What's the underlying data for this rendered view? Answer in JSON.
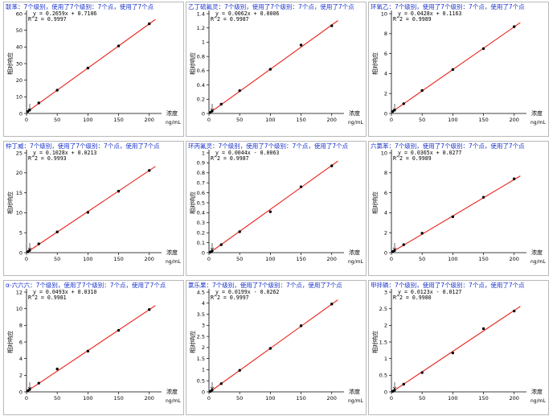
{
  "colors": {
    "line": "#e8231b",
    "point": "#000000",
    "axis": "#000000",
    "title": "#1a33cc"
  },
  "chart_data": [
    {
      "type": "scatter",
      "title": "联苯：7个级别，使用了7个级别：7个点，使用了7个点",
      "equation": "y = 0.2659x + 0.7106",
      "r2": "R^2 = 0.9997",
      "xlabel": "浓度",
      "xunit": "ng/mL",
      "ylabel": "相对响应",
      "xlim": [
        0,
        220
      ],
      "ylim": [
        0,
        60
      ],
      "xticks": [
        0,
        50,
        100,
        150,
        200
      ],
      "yticks": [
        0,
        10,
        20,
        30,
        40,
        50,
        60
      ],
      "x": [
        2,
        5,
        20,
        50,
        100,
        150,
        200
      ],
      "y": [
        1.2,
        2.0,
        6.3,
        14.0,
        27.3,
        40.6,
        53.9
      ],
      "fit": {
        "slope": 0.2659,
        "intercept": 0.7106
      }
    },
    {
      "type": "scatter",
      "title": "乙丁硫氟灵：7个级别，使用了7个级别：7个点，使用了7个点",
      "equation": "y = 0.0062x + 0.0006",
      "r2": "R^2 = 0.9987",
      "xlabel": "浓度",
      "xunit": "ng/mL",
      "ylabel": "相对响应",
      "xlim": [
        0,
        220
      ],
      "ylim": [
        0,
        1.4
      ],
      "xticks": [
        0,
        50,
        100,
        150,
        200
      ],
      "yticks": [
        0,
        0.2,
        0.4,
        0.6,
        0.8,
        1,
        1.2,
        1.4
      ],
      "x": [
        2,
        5,
        20,
        50,
        100,
        150,
        200
      ],
      "y": [
        0.013,
        0.032,
        0.13,
        0.32,
        0.62,
        0.96,
        1.23
      ],
      "fit": {
        "slope": 0.0062,
        "intercept": 0.0006
      }
    },
    {
      "type": "scatter",
      "title": "环氧乙：7个级别，使用了7个级别：7个点，使用了7个点",
      "equation": "y = 0.0428x + 0.1163",
      "r2": "R^2 = 0.9989",
      "xlabel": "浓度",
      "xunit": "ng/mL",
      "ylabel": "相对响应",
      "xlim": [
        0,
        220
      ],
      "ylim": [
        0,
        10
      ],
      "xticks": [
        0,
        50,
        100,
        150,
        200
      ],
      "yticks": [
        0,
        2,
        4,
        6,
        8,
        10
      ],
      "x": [
        2,
        5,
        20,
        50,
        100,
        150,
        200
      ],
      "y": [
        0.2,
        0.33,
        0.98,
        2.3,
        4.4,
        6.5,
        8.7
      ],
      "fit": {
        "slope": 0.0428,
        "intercept": 0.1163
      }
    },
    {
      "type": "scatter",
      "title": "仲丁威：7个级别，使用了7个级别：7个点，使用了7个点",
      "equation": "y = 0.1028x + 0.0213",
      "r2": "R^2 = 0.9993",
      "xlabel": "浓度",
      "xunit": "ng/mL",
      "ylabel": "相对响应",
      "xlim": [
        0,
        220
      ],
      "ylim": [
        0,
        25
      ],
      "xticks": [
        0,
        50,
        100,
        150,
        200
      ],
      "yticks": [
        0,
        5,
        10,
        15,
        20,
        25
      ],
      "x": [
        2,
        5,
        20,
        50,
        100,
        150,
        200
      ],
      "y": [
        0.23,
        0.55,
        2.2,
        5.2,
        10.1,
        15.4,
        20.6
      ],
      "fit": {
        "slope": 0.1028,
        "intercept": 0.0213
      }
    },
    {
      "type": "scatter",
      "title": "环丙氟灵：7个级别，使用了7个级别：7个点，使用了7个点",
      "equation": "y = 0.0044x - 0.0063",
      "r2": "R^2 = 0.9987",
      "xlabel": "浓度",
      "xunit": "ng/mL",
      "ylabel": "相对响应",
      "xlim": [
        0,
        220
      ],
      "ylim": [
        0,
        1.0
      ],
      "xticks": [
        0,
        50,
        100,
        150,
        200
      ],
      "yticks": [
        0,
        0.1,
        0.2,
        0.3,
        0.4,
        0.5,
        0.6,
        0.7,
        0.8,
        0.9,
        1
      ],
      "x": [
        2,
        5,
        20,
        50,
        100,
        150,
        200
      ],
      "y": [
        0.005,
        0.017,
        0.08,
        0.21,
        0.41,
        0.66,
        0.87
      ],
      "fit": {
        "slope": 0.0044,
        "intercept": -0.0063
      }
    },
    {
      "type": "scatter",
      "title": "六氯苯：7个级别，使用了7个级别：7个点，使用了7个点",
      "equation": "y = 0.0365x + 0.0277",
      "r2": "R^2 = 0.9989",
      "xlabel": "浓度",
      "xunit": "ng/mL",
      "ylabel": "相对响应",
      "xlim": [
        0,
        220
      ],
      "ylim": [
        0,
        10
      ],
      "xticks": [
        0,
        50,
        100,
        150,
        200
      ],
      "yticks": [
        0,
        2,
        4,
        6,
        8,
        10
      ],
      "x": [
        2,
        5,
        20,
        50,
        100,
        150,
        200
      ],
      "y": [
        0.1,
        0.21,
        0.8,
        1.95,
        3.6,
        5.55,
        7.4
      ],
      "fit": {
        "slope": 0.0365,
        "intercept": 0.0277
      }
    },
    {
      "type": "scatter",
      "title": "α-六六六：7个级别，使用了7个级别：7个点，使用了7个点",
      "equation": "y = 0.0493x + 0.0310",
      "r2": "R^2 = 0.9981",
      "xlabel": "浓度",
      "xunit": "ng/mL",
      "ylabel": "相对响应",
      "xlim": [
        0,
        220
      ],
      "ylim": [
        0,
        12
      ],
      "xticks": [
        0,
        50,
        100,
        150,
        200
      ],
      "yticks": [
        0,
        2,
        4,
        6,
        8,
        10,
        12
      ],
      "x": [
        2,
        5,
        20,
        50,
        100,
        150,
        200
      ],
      "y": [
        0.13,
        0.28,
        1.05,
        2.75,
        4.9,
        7.4,
        9.9
      ],
      "fit": {
        "slope": 0.0493,
        "intercept": 0.031
      }
    },
    {
      "type": "scatter",
      "title": "氯乐果：7个级别，使用了7个级别：7个点，使用了7个点",
      "equation": "y = 0.0199x - 0.0262",
      "r2": "R^2 = 0.9997",
      "xlabel": "浓度",
      "xunit": "ng/mL",
      "ylabel": "相对响应",
      "xlim": [
        0,
        220
      ],
      "ylim": [
        0,
        4.5
      ],
      "xticks": [
        0,
        50,
        100,
        150,
        200
      ],
      "yticks": [
        0,
        0.5,
        1,
        1.5,
        2,
        2.5,
        3,
        3.5,
        4,
        4.5
      ],
      "x": [
        2,
        5,
        20,
        50,
        100,
        150,
        200
      ],
      "y": [
        0.02,
        0.08,
        0.37,
        0.97,
        1.96,
        2.98,
        3.96
      ],
      "fit": {
        "slope": 0.0199,
        "intercept": -0.0262
      }
    },
    {
      "type": "scatter",
      "title": "甲拌磷：7个级别，使用了7个级别：7个点，使用了7个点",
      "equation": "y = 0.0123x - 0.0127",
      "r2": "R^2 = 0.9980",
      "xlabel": "浓度",
      "xunit": "ng/mL",
      "ylabel": "相对响应",
      "xlim": [
        0,
        220
      ],
      "ylim": [
        0,
        3.0
      ],
      "xticks": [
        0,
        50,
        100,
        150,
        200
      ],
      "yticks": [
        0,
        0.5,
        1,
        1.5,
        2,
        2.5,
        3
      ],
      "x": [
        2,
        5,
        20,
        50,
        100,
        150,
        200
      ],
      "y": [
        0.015,
        0.05,
        0.23,
        0.58,
        1.17,
        1.9,
        2.43
      ],
      "fit": {
        "slope": 0.0123,
        "intercept": -0.0127
      }
    }
  ]
}
